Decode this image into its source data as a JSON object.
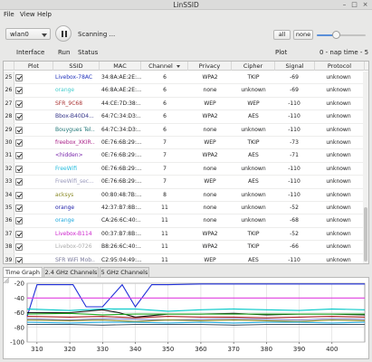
{
  "window": {
    "title": "LinSSID"
  },
  "menu": [
    "File",
    "View",
    "Help"
  ],
  "toolbar": {
    "interface_value": "wlan0",
    "status_text": "Scanning ...",
    "interface_label": "Interface",
    "run_label": "Run",
    "status_label": "Status",
    "plot_label": "Plot",
    "all_label": "all",
    "none_label": "none",
    "nap_text": "0 - nap time - 5",
    "nap_level": 0.4
  },
  "table": {
    "headers": [
      "",
      "Plot",
      "SSID",
      "MAC",
      "Channel",
      "Privacy",
      "Cipher",
      "Signal",
      "Protocol"
    ],
    "rows": [
      {
        "num": "25",
        "ssid": "Livebox-78AC",
        "mac": "34:8A:AE:2E:...",
        "channel": "6",
        "privacy": "WPA2",
        "cipher": "TKIP",
        "signal": "-69",
        "protocol": "unknown",
        "color": "#2233bb"
      },
      {
        "num": "26",
        "ssid": "orange",
        "mac": "46:8A:AE:2E:...",
        "channel": "6",
        "privacy": "none",
        "cipher": "unknown",
        "signal": "-69",
        "protocol": "unknown",
        "color": "#44cccc"
      },
      {
        "num": "27",
        "ssid": "SFR_9C68",
        "mac": "44:CE:7D:38:...",
        "channel": "6",
        "privacy": "WEP",
        "cipher": "WEP",
        "signal": "-110",
        "protocol": "unknown",
        "color": "#aa3333"
      },
      {
        "num": "28",
        "ssid": "Bbox-B40D4...",
        "mac": "64:7C:34:D3:...",
        "channel": "6",
        "privacy": "WPA2",
        "cipher": "AES",
        "signal": "-110",
        "protocol": "unknown",
        "color": "#333388"
      },
      {
        "num": "29",
        "ssid": "Bouygues Tel...",
        "mac": "64:7C:34:D3:...",
        "channel": "6",
        "privacy": "none",
        "cipher": "unknown",
        "signal": "-110",
        "protocol": "unknown",
        "color": "#227777"
      },
      {
        "num": "30",
        "ssid": "freebox_XKIR...",
        "mac": "0E:76:6B:29:...",
        "channel": "7",
        "privacy": "WEP",
        "cipher": "TKIP",
        "signal": "-73",
        "protocol": "unknown",
        "color": "#aa2288"
      },
      {
        "num": "31",
        "ssid": "<hidden>",
        "mac": "0E:76:6B:29:...",
        "channel": "7",
        "privacy": "WPA2",
        "cipher": "AES",
        "signal": "-71",
        "protocol": "unknown",
        "color": "#7722aa"
      },
      {
        "num": "32",
        "ssid": "FreeWifi",
        "mac": "0E:76:6B:29:...",
        "channel": "7",
        "privacy": "none",
        "cipher": "unknown",
        "signal": "-110",
        "protocol": "unknown",
        "color": "#22bbdd"
      },
      {
        "num": "33",
        "ssid": "FreeWifi_sec...",
        "mac": "0E:76:6B:29:...",
        "channel": "7",
        "privacy": "WEP",
        "cipher": "AES",
        "signal": "-110",
        "protocol": "unknown",
        "color": "#9999bb"
      },
      {
        "num": "34",
        "ssid": "acksys",
        "mac": "00:80:48:7B:...",
        "channel": "8",
        "privacy": "none",
        "cipher": "unknown",
        "signal": "-110",
        "protocol": "unknown",
        "color": "#888822"
      },
      {
        "num": "35",
        "ssid": "orange",
        "mac": "42:37:B7:8B:...",
        "channel": "11",
        "privacy": "none",
        "cipher": "unknown",
        "signal": "-52",
        "protocol": "unknown",
        "color": "#2222aa"
      },
      {
        "num": "36",
        "ssid": "orange",
        "mac": "CA:26:6C:40:...",
        "channel": "11",
        "privacy": "none",
        "cipher": "unknown",
        "signal": "-68",
        "protocol": "unknown",
        "color": "#22aadd"
      },
      {
        "num": "37",
        "ssid": "Livebox-B114",
        "mac": "00:37:B7:8B:...",
        "channel": "11",
        "privacy": "WPA2",
        "cipher": "TKIP",
        "signal": "-52",
        "protocol": "unknown",
        "color": "#cc22cc"
      },
      {
        "num": "38",
        "ssid": "Livebox-0726",
        "mac": "B8:26:6C:40:...",
        "channel": "11",
        "privacy": "WPA2",
        "cipher": "TKIP",
        "signal": "-66",
        "protocol": "unknown",
        "color": "#aaaaaa"
      },
      {
        "num": "39",
        "ssid": "SFR WiFi Mob...",
        "mac": "C2:95:04:49:...",
        "channel": "11",
        "privacy": "WEP",
        "cipher": "AES",
        "signal": "-110",
        "protocol": "unknown",
        "color": "#777799"
      }
    ]
  },
  "tabs": [
    "Time Graph",
    "2.4 GHz Channels",
    "5 GHz Channels"
  ],
  "chart_data": {
    "type": "line",
    "ylim": [
      -100,
      -20
    ],
    "yticks": [
      -20,
      -40,
      -60,
      -80,
      -100
    ],
    "xlim": [
      307,
      410
    ],
    "xticks": [
      310,
      320,
      330,
      340,
      350,
      360,
      370,
      380,
      390,
      400
    ],
    "grid": true,
    "series": [
      {
        "color": "#1f2fd8",
        "x": [
          307,
          310,
          315,
          321,
          325,
          330,
          336,
          340,
          345,
          350,
          360,
          370,
          380,
          390,
          400,
          410
        ],
        "y": [
          -65,
          -22,
          -22,
          -22,
          -52,
          -52,
          -22,
          -52,
          -22,
          -22,
          -21,
          -21,
          -21,
          -21,
          -21,
          -21
        ]
      },
      {
        "color": "#e040e0",
        "x": [
          307,
          320,
          330,
          340,
          350,
          360,
          370,
          380,
          390,
          400,
          410
        ],
        "y": [
          -40,
          -40,
          -40,
          -40,
          -40,
          -40,
          -40,
          -40,
          -40,
          -40,
          -40
        ]
      },
      {
        "color": "#00c8c8",
        "x": [
          307,
          320,
          330,
          340,
          350,
          360,
          370,
          380,
          390,
          400,
          410
        ],
        "y": [
          -55,
          -57,
          -55,
          -55,
          -58,
          -56,
          -55,
          -56,
          -57,
          -55,
          -56
        ]
      },
      {
        "color": "#111111",
        "x": [
          307,
          320,
          330,
          335,
          340,
          350,
          360,
          370,
          380,
          390,
          400,
          410
        ],
        "y": [
          -60,
          -60,
          -56,
          -60,
          -66,
          -62,
          -62,
          -61,
          -63,
          -62,
          -62,
          -63
        ]
      },
      {
        "color": "#22aa22",
        "x": [
          307,
          320,
          330,
          340,
          350,
          360,
          370,
          380,
          390,
          400,
          410
        ],
        "y": [
          -62,
          -61,
          -63,
          -62,
          -62,
          -62,
          -62,
          -62,
          -62,
          -62,
          -62
        ]
      },
      {
        "color": "#aa2222",
        "x": [
          307,
          320,
          330,
          340,
          350,
          360,
          370,
          380,
          390,
          400,
          410
        ],
        "y": [
          -65,
          -66,
          -65,
          -67,
          -65,
          -66,
          -66,
          -67,
          -66,
          -65,
          -66
        ]
      },
      {
        "color": "#8888cc",
        "x": [
          307,
          320,
          330,
          340,
          350,
          360,
          370,
          380,
          390,
          400,
          410
        ],
        "y": [
          -68,
          -70,
          -68,
          -69,
          -70,
          -69,
          -68,
          -69,
          -70,
          -68,
          -69
        ]
      },
      {
        "color": "#888822",
        "x": [
          307,
          320,
          330,
          340,
          350,
          360,
          370,
          380,
          390,
          400,
          410
        ],
        "y": [
          -70,
          -71,
          -70,
          -72,
          -70,
          -71,
          -70,
          -71,
          -72,
          -70,
          -71
        ]
      },
      {
        "color": "#22aadd",
        "x": [
          307,
          320,
          330,
          340,
          350,
          360,
          370,
          380,
          390,
          400,
          410
        ],
        "y": [
          -73,
          -74,
          -73,
          -73,
          -74,
          -73,
          -74,
          -73,
          -73,
          -74,
          -73
        ]
      },
      {
        "color": "#445566",
        "x": [
          307,
          320,
          330,
          340,
          350,
          360,
          370,
          380,
          390,
          400,
          410
        ],
        "y": [
          -76,
          -76,
          -77,
          -76,
          -76,
          -76,
          -77,
          -76,
          -76,
          -76,
          -76
        ]
      }
    ]
  }
}
